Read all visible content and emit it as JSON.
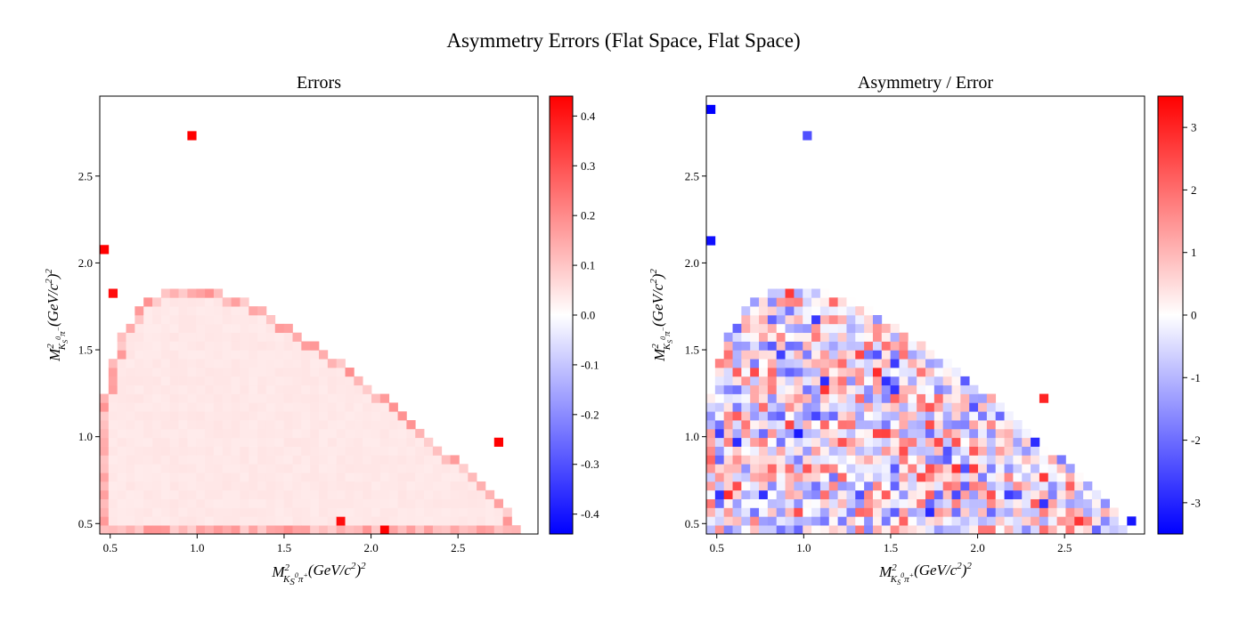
{
  "figure": {
    "title": "Asymmetry Errors (Flat Space, Flat Space)"
  },
  "chart_data": [
    {
      "type": "heatmap",
      "title": "Errors",
      "xlabel": "M²_{K_S^0 π^+} (GeV/c²)²",
      "ylabel": "M²_{K_S^0 π^-} (GeV/c²)²",
      "xlim": [
        0.44,
        2.96
      ],
      "ylim": [
        0.44,
        2.96
      ],
      "xticks": [
        0.5,
        1.0,
        1.5,
        2.0,
        2.5
      ],
      "yticks": [
        0.5,
        1.0,
        1.5,
        2.0,
        2.5
      ],
      "xtick_labels": [
        "0.5",
        "1.0",
        "1.5",
        "2.0",
        "2.5"
      ],
      "ytick_labels": [
        "0.5",
        "1.0",
        "1.5",
        "2.0",
        "2.5"
      ],
      "grid": false,
      "bins": 50,
      "colormap": "bwr",
      "colorbar": {
        "range": [
          -0.44,
          0.44
        ],
        "ticks": [
          -0.4,
          -0.3,
          -0.2,
          -0.1,
          0.0,
          0.1,
          0.2,
          0.3,
          0.4
        ],
        "tick_labels": [
          "-0.4",
          "-0.3",
          "-0.2",
          "-0.1",
          "0.0",
          "0.1",
          "0.2",
          "0.3",
          "0.4"
        ]
      },
      "interior_value": 0.04,
      "edge_value": 0.14,
      "hot_points": [
        {
          "x": 0.46,
          "y": 2.07,
          "value": 0.44
        },
        {
          "x": 0.51,
          "y": 1.82,
          "value": 0.42
        },
        {
          "x": 0.96,
          "y": 2.74,
          "value": 0.44
        },
        {
          "x": 1.82,
          "y": 0.51,
          "value": 0.42
        },
        {
          "x": 2.07,
          "y": 0.46,
          "value": 0.44
        },
        {
          "x": 2.74,
          "y": 0.96,
          "value": 0.44
        }
      ]
    },
    {
      "type": "heatmap",
      "title": "Asymmetry / Error",
      "xlabel": "M²_{K_S^0 π^+} (GeV/c²)²",
      "ylabel": "M²_{K_S^0 π^-} (GeV/c²)²",
      "xlim": [
        0.44,
        2.96
      ],
      "ylim": [
        0.44,
        2.96
      ],
      "xticks": [
        0.5,
        1.0,
        1.5,
        2.0,
        2.5
      ],
      "yticks": [
        0.5,
        1.0,
        1.5,
        2.0,
        2.5
      ],
      "xtick_labels": [
        "0.5",
        "1.0",
        "1.5",
        "2.0",
        "2.5"
      ],
      "ytick_labels": [
        "0.5",
        "1.0",
        "1.5",
        "2.0",
        "2.5"
      ],
      "grid": false,
      "bins": 50,
      "colormap": "bwr",
      "colorbar": {
        "range": [
          -3.5,
          3.5
        ],
        "ticks": [
          -3,
          -2,
          -1,
          0,
          1,
          2,
          3
        ],
        "tick_labels": [
          "-3",
          "-2",
          "-1",
          "0",
          "1",
          "2",
          "3"
        ]
      },
      "value_spread": 1.2,
      "extreme_points": [
        {
          "x": 0.46,
          "y": 2.87,
          "value": -3.5
        },
        {
          "x": 0.46,
          "y": 2.12,
          "value": -3.3
        },
        {
          "x": 2.9,
          "y": 0.51,
          "value": -3.2
        },
        {
          "x": 1.12,
          "y": 1.31,
          "value": -2.9
        },
        {
          "x": 2.37,
          "y": 1.22,
          "value": 3.0
        },
        {
          "x": 1.47,
          "y": 1.02,
          "value": 2.6
        },
        {
          "x": 1.02,
          "y": 2.72,
          "value": -2.4
        }
      ]
    }
  ]
}
